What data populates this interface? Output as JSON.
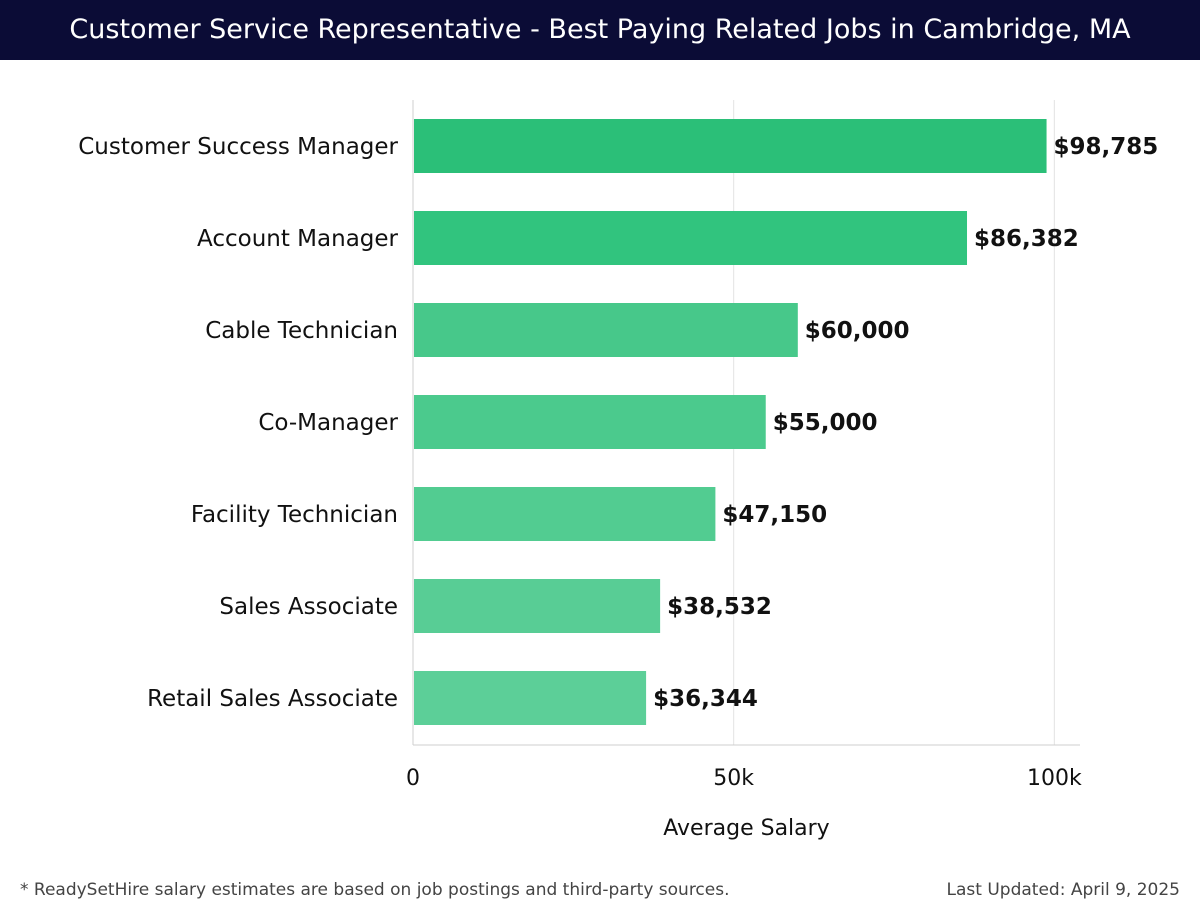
{
  "header": {
    "title": "Customer Service Representative - Best Paying Related Jobs in Cambridge, MA"
  },
  "chart_data": {
    "type": "bar",
    "orientation": "horizontal",
    "title": "Customer Service Representative - Best Paying Related Jobs in Cambridge, MA",
    "categories": [
      "Customer Success Manager",
      "Account Manager",
      "Cable Technician",
      "Co-Manager",
      "Facility Technician",
      "Sales Associate",
      "Retail Sales Associate"
    ],
    "values": [
      98785,
      86382,
      60000,
      55000,
      47150,
      38532,
      36344
    ],
    "value_labels": [
      "$98,785",
      "$86,382",
      "$60,000",
      "$55,000",
      "$47,150",
      "$38,532",
      "$36,344"
    ],
    "xlabel": "Average Salary",
    "ylabel": "",
    "xlim": [
      0,
      104000
    ],
    "xticks": [
      0,
      50000,
      100000
    ],
    "xtick_labels": [
      "0",
      "50k",
      "100k"
    ],
    "grid": "vertical",
    "colors": [
      "#2bbf78",
      "#31c47e",
      "#47c88a",
      "#4bca8d",
      "#52cc91",
      "#58cd95",
      "#5ccf98"
    ]
  },
  "footer": {
    "note": "* ReadySetHire salary estimates are based on job postings and third-party sources.",
    "updated": "Last Updated: April 9, 2025"
  }
}
